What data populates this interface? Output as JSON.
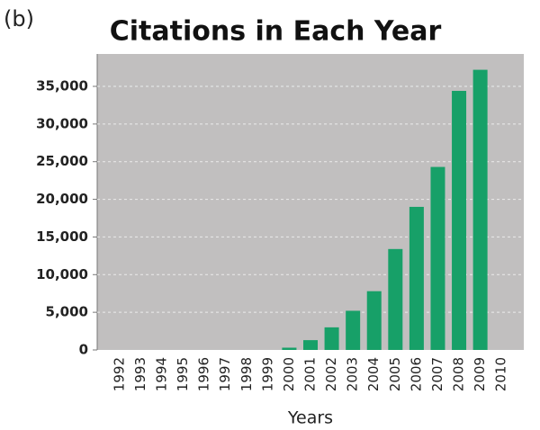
{
  "panel_label": "(b)",
  "chart_data": {
    "type": "bar",
    "title": "Citations in Each Year",
    "x_label": "Years",
    "categories": [
      "1992",
      "1993",
      "1994",
      "1995",
      "1996",
      "1997",
      "1998",
      "1999",
      "2000",
      "2001",
      "2002",
      "2003",
      "2004",
      "2005",
      "2006",
      "2007",
      "2008",
      "2009",
      "2010"
    ],
    "values": [
      0,
      0,
      0,
      0,
      0,
      0,
      0,
      0,
      300,
      1300,
      3000,
      5200,
      7800,
      13400,
      19000,
      24300,
      34400,
      37200,
      0
    ],
    "color": "#17a068",
    "ylim": [
      0,
      39300
    ],
    "yticks": [
      0,
      {
        "value": 5000,
        "label": "5,000"
      },
      {
        "value": 10000,
        "label": "10,000"
      },
      {
        "value": 15000,
        "label": "15,000"
      },
      {
        "value": 20000,
        "label": "20,000"
      },
      {
        "value": 25000,
        "label": "25,000"
      },
      {
        "value": 30000,
        "label": "30,000"
      },
      {
        "value": 35000,
        "label": "35,000"
      }
    ],
    "grid": true
  }
}
